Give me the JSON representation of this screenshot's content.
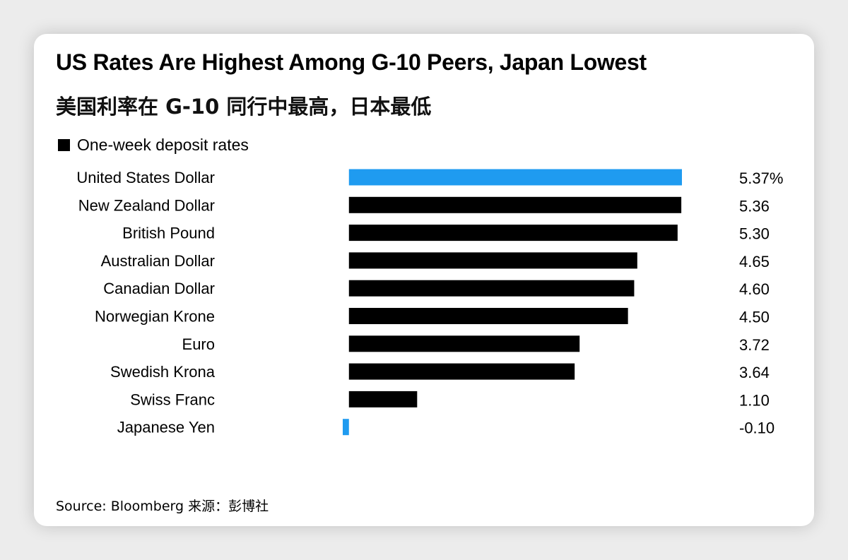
{
  "title": "US Rates Are Highest Among G-10 Peers, Japan Lowest",
  "subtitle": "美国利率在 G-10 同行中最高，日本最低",
  "source": "Source: Bloomberg 来源：彭博社",
  "colors": {
    "highlight": "#1f9bf0",
    "default": "#000000"
  },
  "chart_data": {
    "type": "bar",
    "orientation": "horizontal",
    "legend": [
      {
        "label": "One-week deposit rates",
        "color": "#000000"
      }
    ],
    "legend_position": "top-left",
    "grid": false,
    "categories": [
      "United States Dollar",
      "New Zealand Dollar",
      "British Pound",
      "Australian Dollar",
      "Canadian Dollar",
      "Norwegian Krone",
      "Euro",
      "Swedish Krona",
      "Swiss Franc",
      "Japanese Yen"
    ],
    "values": [
      5.37,
      5.36,
      5.3,
      4.65,
      4.6,
      4.5,
      3.72,
      3.64,
      1.1,
      -0.1
    ],
    "value_labels": [
      "5.37%",
      "5.36",
      "5.30",
      "4.65",
      "4.60",
      "4.50",
      "3.72",
      "3.64",
      "1.10",
      "-0.10"
    ],
    "highlighted": [
      "United States Dollar",
      "Japanese Yen"
    ],
    "xlim": [
      -0.1,
      5.37
    ]
  }
}
